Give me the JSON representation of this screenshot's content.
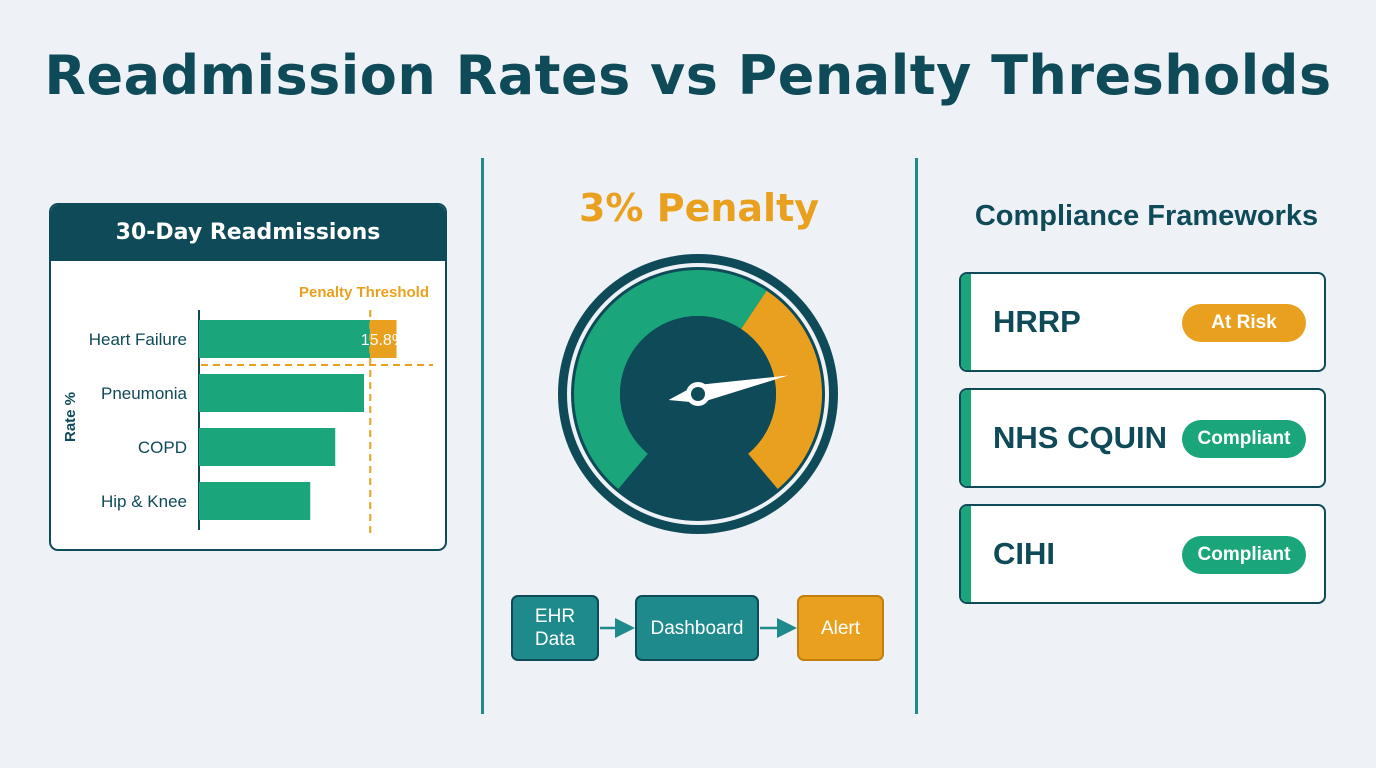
{
  "title": "Readmission Rates vs Penalty Thresholds",
  "colors": {
    "dark_teal": "#0f4a58",
    "teal": "#1e8a8c",
    "green": "#1aa57a",
    "orange": "#e9a01e",
    "background": "#eef2f7"
  },
  "chart_data": {
    "type": "bar",
    "orientation": "horizontal",
    "title": "30-Day Readmissions",
    "ylabel": "Rate %",
    "categories": [
      "Heart Failure",
      "Pneumonia",
      "COPD",
      "Hip & Knee"
    ],
    "values": [
      15.8,
      13.2,
      10.9,
      8.9
    ],
    "data_labels": [
      "15.8%",
      "",
      "",
      ""
    ],
    "xlim": [
      0,
      20
    ],
    "threshold": {
      "label": "Penalty Threshold",
      "value": 13.7
    },
    "highlight_color": "#e9a01e",
    "bar_color": "#1aa57a",
    "grid": false
  },
  "penalty": {
    "title": "3% Penalty",
    "gauge_level": 0.78,
    "gauge_warning_start": 0.62
  },
  "flow": {
    "steps": [
      {
        "label": "EHR\nData",
        "icon": ""
      },
      {
        "label": "Dashboard"
      },
      {
        "label": "Alert"
      }
    ]
  },
  "frameworks": {
    "title": "Compliance Frameworks",
    "items": [
      {
        "name": "HRRP",
        "status": "At Risk"
      },
      {
        "name": "NHS CQUIN",
        "status": "Compliant"
      },
      {
        "name": "CIHI",
        "status": "Compliant"
      }
    ]
  }
}
